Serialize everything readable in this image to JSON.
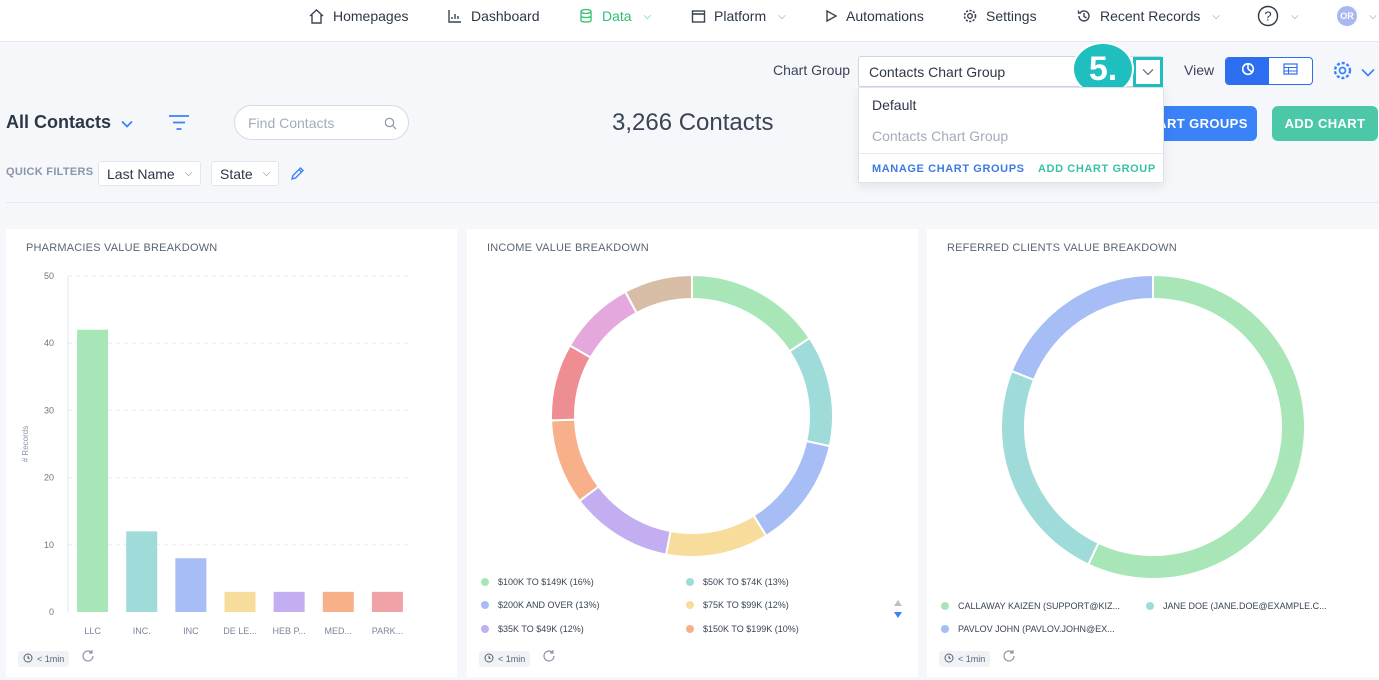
{
  "nav": {
    "items": [
      {
        "label": "Homepages",
        "icon": "home-icon"
      },
      {
        "label": "Dashboard",
        "icon": "dashboard-icon"
      },
      {
        "label": "Data",
        "icon": "database-icon",
        "active": true
      },
      {
        "label": "Platform",
        "icon": "window-icon"
      },
      {
        "label": "Automations",
        "icon": "play-icon"
      },
      {
        "label": "Settings",
        "icon": "gear-icon"
      },
      {
        "label": "Recent Records",
        "icon": "history-icon"
      }
    ],
    "avatar_initials": "OR"
  },
  "chart_group": {
    "label": "Chart Group",
    "selected": "Contacts Chart Group",
    "step_marker": "5.",
    "options": [
      "Default",
      "Contacts Chart Group"
    ],
    "manage_label": "MANAGE CHART GROUPS",
    "add_label": "ADD CHART GROUP"
  },
  "view": {
    "label": "View"
  },
  "contacts": {
    "title": "All Contacts",
    "search_placeholder": "Find Contacts",
    "count": "3,266 Contacts",
    "chart_groups_button": "ART GROUPS",
    "add_chart_button": "ADD CHART"
  },
  "quick_filters": {
    "label": "QUICK FILTERS",
    "filters": [
      "Last Name",
      "State"
    ]
  },
  "colors": {
    "accent_blue": "#3a82f7",
    "accent_teal": "#4cc8a8",
    "active_green": "#2fbf71",
    "step_teal": "#1fbfbf"
  },
  "chart_data": [
    {
      "type": "bar",
      "title": "PHARMACIES VALUE BREAKDOWN",
      "categories": [
        "LLC",
        "INC.",
        "INC",
        "DE LE...",
        "HEB P...",
        "MED...",
        "PARK..."
      ],
      "values": [
        42,
        12,
        8,
        3,
        3,
        3,
        3
      ],
      "colors": [
        "#a8e6b8",
        "#9edbd9",
        "#a7bdf5",
        "#f8dc9b",
        "#c2aef0",
        "#f7b08a",
        "#f0a3a6"
      ],
      "ylabel": "# Records",
      "ylim": [
        0,
        50
      ],
      "yticks": [
        0,
        10,
        20,
        30,
        40,
        50
      ],
      "grid": true,
      "refresh": "< 1min"
    },
    {
      "type": "pie",
      "title": "INCOME VALUE BREAKDOWN",
      "series": [
        {
          "name": "$100K TO $149K",
          "value": 16,
          "label": "$100K TO $149K (16%)",
          "color": "#a8e6b8"
        },
        {
          "name": "$50K TO $74K",
          "value": 13,
          "label": "$50K TO $74K (13%)",
          "color": "#9edbd9"
        },
        {
          "name": "$200K AND OVER",
          "value": 13,
          "label": "$200K AND OVER (13%)",
          "color": "#a7bdf5"
        },
        {
          "name": "$75K TO $99K",
          "value": 12,
          "label": "$75K TO $99K (12%)",
          "color": "#f8dc9b"
        },
        {
          "name": "$35K TO $49K",
          "value": 12,
          "label": "$35K TO $49K (12%)",
          "color": "#c2aef0"
        },
        {
          "name": "$150K TO $199K",
          "value": 10,
          "label": "$150K TO $199K (10%)",
          "color": "#f7b08a"
        },
        {
          "value": 9,
          "color": "#ee8d92"
        },
        {
          "value": 9,
          "color": "#e4a8dc"
        },
        {
          "value": 8,
          "color": "#d8bda6"
        }
      ],
      "refresh": "< 1min"
    },
    {
      "type": "pie",
      "title": "REFERRED CLIENTS VALUE BREAKDOWN",
      "series": [
        {
          "name": "CALLAWAY KAIZEN",
          "value": 57,
          "label": "CALLAWAY KAIZEN (SUPPORT@KIZ...",
          "color": "#a8e6b8"
        },
        {
          "name": "JANE DOE",
          "value": 24,
          "label": "JANE DOE (JANE.DOE@EXAMPLE.C...",
          "color": "#9edbd9"
        },
        {
          "name": "PAVLOV JOHN",
          "value": 19,
          "label": "PAVLOV JOHN (PAVLOV.JOHN@EX...",
          "color": "#a7bdf5"
        }
      ],
      "refresh": "< 1min"
    }
  ]
}
